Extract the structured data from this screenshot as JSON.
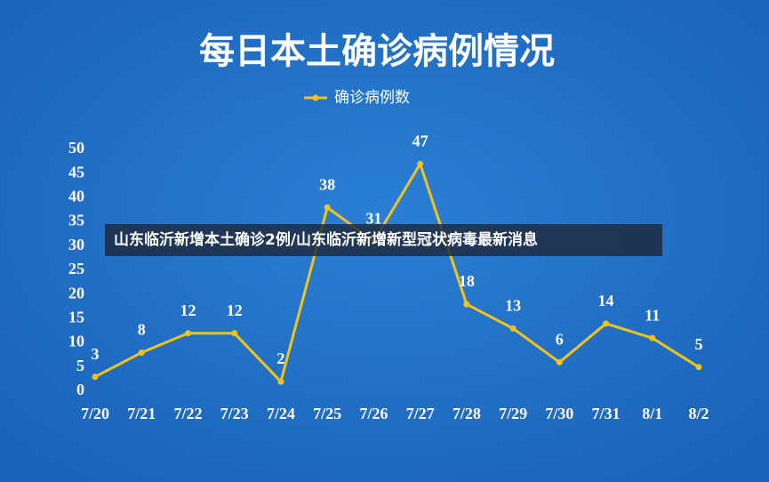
{
  "chart_data": {
    "type": "line",
    "title": "每日本土确诊病例情况",
    "categories": [
      "7/20",
      "7/21",
      "7/22",
      "7/23",
      "7/24",
      "7/25",
      "7/26",
      "7/27",
      "7/28",
      "7/29",
      "7/30",
      "7/31",
      "8/1",
      "8/2"
    ],
    "series": [
      {
        "name": "确诊病例数",
        "color": "#f2c21b",
        "values": [
          3,
          8,
          12,
          12,
          2,
          38,
          31,
          47,
          18,
          13,
          6,
          14,
          11,
          5
        ]
      }
    ],
    "ylim": [
      0,
      50
    ],
    "yticks": [
      0,
      5,
      10,
      15,
      20,
      25,
      30,
      35,
      40,
      45,
      50
    ],
    "grid": false,
    "legend": "top"
  },
  "banner": "山东临沂新增本土确诊2例/山东临沂新增新型冠状病毒最新消息"
}
